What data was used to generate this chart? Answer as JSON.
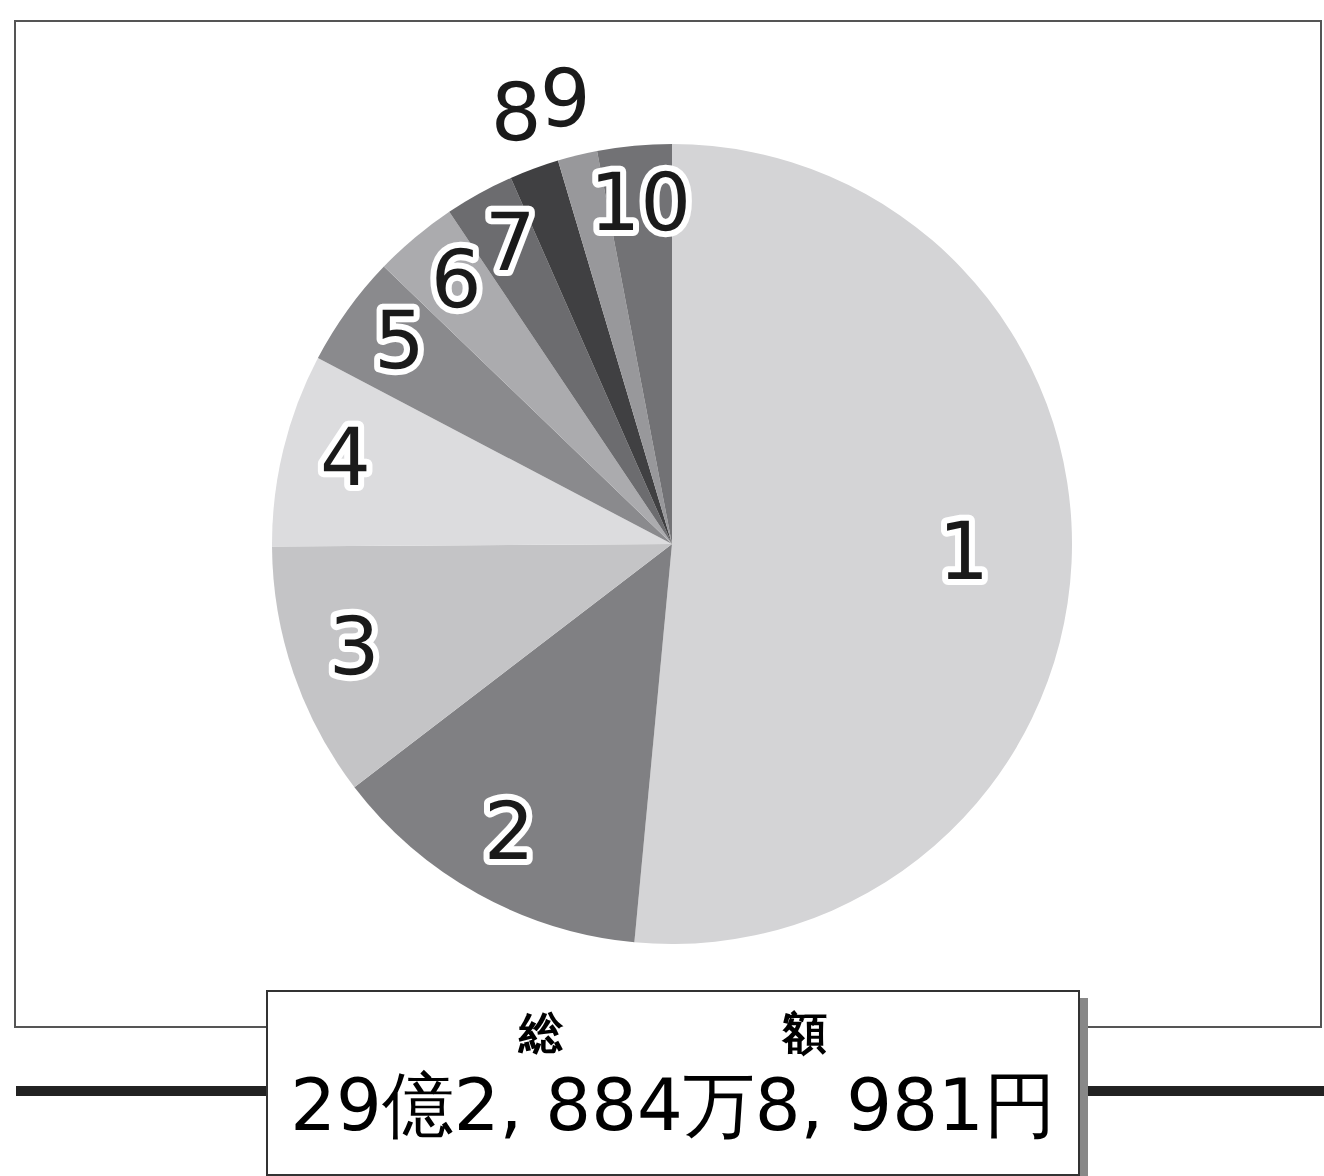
{
  "chart_data": {
    "type": "pie",
    "categories": [
      "1",
      "2",
      "3",
      "4",
      "5",
      "6",
      "7",
      "8",
      "9",
      "10"
    ],
    "values": [
      51.5,
      13.1,
      10.3,
      7.8,
      4.5,
      3.4,
      2.8,
      2.0,
      1.6,
      3.0
    ],
    "colors": [
      "#d4d4d6",
      "#808083",
      "#c4c4c6",
      "#dcdcde",
      "#8a8a8d",
      "#ababae",
      "#6c6c6f",
      "#404042",
      "#98989b",
      "#727275"
    ],
    "legend": false,
    "annotations": [
      "総　　　　　額",
      "29億2, 884万8, 981円"
    ]
  }
}
